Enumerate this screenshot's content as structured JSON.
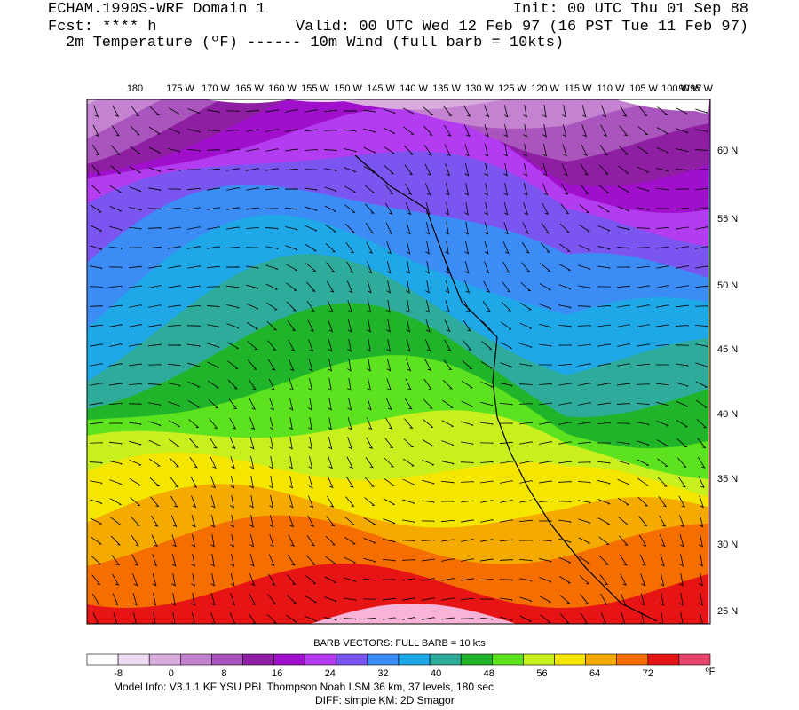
{
  "header": {
    "title": "ECHAM.1990S-WRF Domain 1",
    "init": "Init: 00 UTC Thu 01 Sep 88",
    "forecast": "Fcst: **** h",
    "valid": "Valid: 00 UTC Wed 12 Feb 97 (16 PST Tue 11 Feb 97)",
    "fields": "2m Temperature (ºF) ------ 10m Wind (full barb = 10kts)"
  },
  "map": {
    "longitude_labels": [
      "180",
      "175 W",
      "170 W",
      "165 W",
      "160 W",
      "155 W",
      "150 W",
      "145 W",
      "140 W",
      "135 W",
      "130 W",
      "125 W",
      "120 W",
      "115 W",
      "110 W",
      "105 W",
      "100 W",
      "95 W",
      "90 W"
    ],
    "latitude_labels": [
      "60 N",
      "55 N",
      "50 N",
      "45 N",
      "40 N",
      "35 N",
      "30 N",
      "25 N"
    ]
  },
  "colorbar": {
    "caption": "BARB VECTORS:  FULL BARB = 10 kts",
    "unit": "ºF",
    "colors": [
      "#ffffff",
      "#eedcf4",
      "#d9acde",
      "#c483d0",
      "#aa55bd",
      "#8e1fa2",
      "#a010cc",
      "#b43cf0",
      "#7a55f0",
      "#3c8cf5",
      "#1fa8e8",
      "#2eab9a",
      "#1fb42a",
      "#5ce21e",
      "#c8f01e",
      "#f5e600",
      "#f5aa00",
      "#f56e00",
      "#e61414",
      "#e6466e"
    ],
    "labels": [
      -8,
      0,
      8,
      16,
      24,
      32,
      40,
      48,
      56,
      64,
      72
    ]
  },
  "footer": {
    "model_info": "Model Info: V3.1.1   KF      YSU PBL  Thompson     Noah LSM  36 km,    37 levels,  180 sec",
    "diff": "DIFF: simple KM: 2D Smagor"
  }
}
